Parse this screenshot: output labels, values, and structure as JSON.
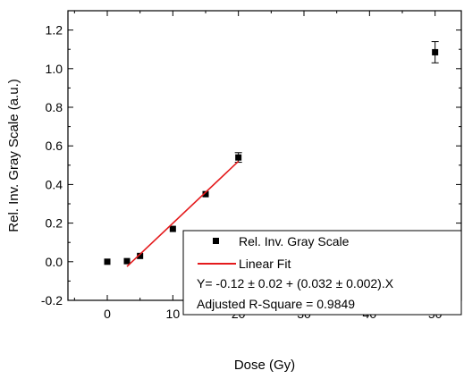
{
  "chart_data": {
    "type": "scatter",
    "xlabel": "Dose (Gy)",
    "ylabel": "Rel. Inv. Gray Scale (a.u.)",
    "xlim": [
      -6,
      54
    ],
    "ylim": [
      -0.2,
      1.3
    ],
    "x_ticks": [
      0,
      10,
      20,
      30,
      40,
      50
    ],
    "y_ticks": [
      -0.2,
      0.0,
      0.2,
      0.4,
      0.6,
      0.8,
      1.0,
      1.2
    ],
    "x_tick_labels": [
      "0",
      "10",
      "20",
      "30",
      "40",
      "50"
    ],
    "y_tick_labels": [
      "-0.2",
      "0.0",
      "0.2",
      "0.4",
      "0.6",
      "0.8",
      "1.0",
      "1.2"
    ],
    "series": [
      {
        "name": "Rel. Inv. Gray Scale",
        "type": "scatter",
        "color": "#000000",
        "x": [
          0,
          3,
          5,
          10,
          15,
          20,
          50
        ],
        "y": [
          0.0,
          0.003,
          0.03,
          0.17,
          0.35,
          0.54,
          1.085
        ],
        "error": [
          0.0,
          0.0,
          0.0,
          0.0,
          0.0,
          0.025,
          0.055
        ]
      },
      {
        "name": "Linear Fit",
        "type": "line",
        "color": "#e41a1c",
        "x": [
          3,
          20
        ],
        "y": [
          -0.025,
          0.52
        ]
      }
    ],
    "legend": {
      "position": "bottom-right",
      "entries": [
        "Rel. Inv. Gray Scale",
        "Linear Fit"
      ],
      "equation": "Y= -0.12 ± 0.02 + (0.032 ± 0.002).X",
      "r_square": "Adjusted R-Square = 0.9849"
    }
  }
}
